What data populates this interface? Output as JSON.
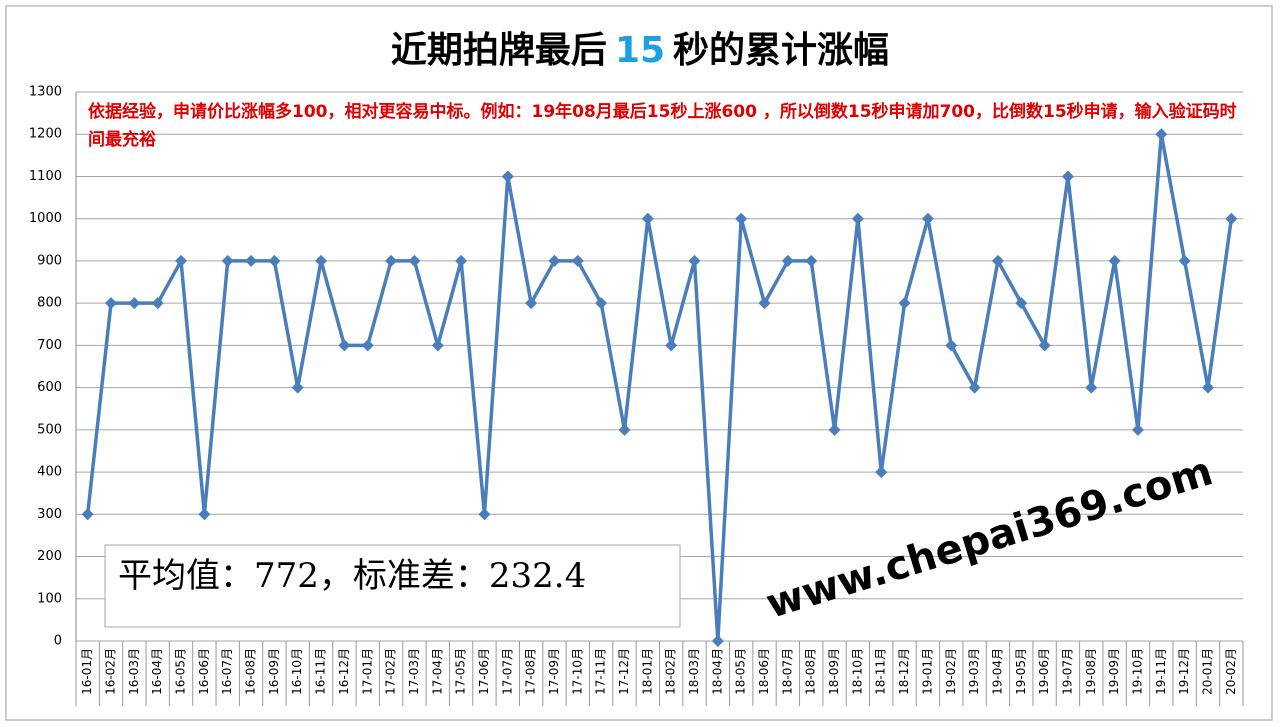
{
  "chart_data": {
    "type": "line",
    "title_parts": [
      "近期拍牌最后",
      "15",
      "秒的累计涨幅"
    ],
    "annotation": "依据经验，申请价比涨幅多100，相对更容易中标。例如：19年08月最后15秒上涨600 ，所以倒数15秒申请加700，比倒数15秒申请，输入验证码时间最充裕",
    "stats_note": "平均值：772，标准差：232.4",
    "watermark": "www.chepai369.com",
    "categories": [
      "16-01月",
      "16-02月",
      "16-03月",
      "16-04月",
      "16-05月",
      "16-06月",
      "16-07月",
      "16-08月",
      "16-09月",
      "16-10月",
      "16-11月",
      "16-12月",
      "17-01月",
      "17-02月",
      "17-03月",
      "17-04月",
      "17-05月",
      "17-06月",
      "17-07月",
      "17-08月",
      "17-09月",
      "17-10月",
      "17-11月",
      "17-12月",
      "18-01月",
      "18-02月",
      "18-03月",
      "18-04月",
      "18-05月",
      "18-06月",
      "18-07月",
      "18-08月",
      "18-09月",
      "18-10月",
      "18-11月",
      "18-12月",
      "19-01月",
      "19-02月",
      "19-03月",
      "19-04月",
      "19-05月",
      "19-06月",
      "19-07月",
      "19-08月",
      "19-09月",
      "19-10月",
      "19-11月",
      "19-12月",
      "20-01月",
      "20-02月"
    ],
    "values": [
      300,
      800,
      800,
      800,
      900,
      300,
      900,
      900,
      900,
      600,
      900,
      700,
      700,
      900,
      900,
      700,
      900,
      300,
      1100,
      800,
      900,
      900,
      800,
      500,
      1000,
      700,
      900,
      0,
      1000,
      800,
      900,
      900,
      500,
      1000,
      400,
      800,
      1000,
      700,
      600,
      900,
      800,
      700,
      1100,
      600,
      900,
      500,
      1200,
      900,
      600,
      1000
    ],
    "color": "#4a7ebb",
    "ylim": [
      0,
      1300
    ],
    "yticks": [
      0,
      100,
      200,
      300,
      400,
      500,
      600,
      700,
      800,
      900,
      1000,
      1100,
      1200,
      1300
    ],
    "grid": true
  }
}
